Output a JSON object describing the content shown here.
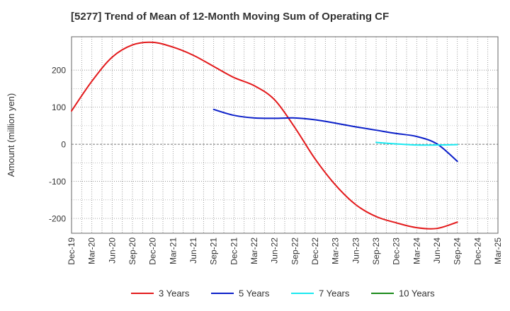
{
  "chart_data": {
    "type": "line",
    "title": "[5277]  Trend of Mean of 12-Month Moving Sum of Operating CF",
    "xlabel": "",
    "ylabel": "Amount (million yen)",
    "ylim": [
      -240,
      290
    ],
    "yticks": [
      -200,
      -100,
      0,
      100,
      200
    ],
    "categories": [
      "Dec-19",
      "Mar-20",
      "Jun-20",
      "Sep-20",
      "Dec-20",
      "Mar-21",
      "Jun-21",
      "Sep-21",
      "Dec-21",
      "Mar-22",
      "Jun-22",
      "Sep-22",
      "Dec-22",
      "Mar-23",
      "Jun-23",
      "Sep-23",
      "Dec-23",
      "Mar-24",
      "Jun-24",
      "Sep-24",
      "Dec-24",
      "Mar-25"
    ],
    "grid": true,
    "legend_position": "bottom",
    "series": [
      {
        "name": "3 Years",
        "color": "#e31a1c",
        "values": [
          90,
          170,
          235,
          268,
          275,
          262,
          240,
          210,
          180,
          158,
          120,
          45,
          -40,
          -110,
          -163,
          -195,
          -212,
          -225,
          -227,
          -210,
          null,
          null
        ]
      },
      {
        "name": "5 Years",
        "color": "#0b1fc9",
        "values": [
          null,
          null,
          null,
          null,
          null,
          null,
          null,
          94,
          78,
          71,
          70,
          71,
          66,
          57,
          47,
          38,
          29,
          21,
          1,
          -46,
          null,
          null
        ]
      },
      {
        "name": "7 Years",
        "color": "#1ae8f0",
        "values": [
          null,
          null,
          null,
          null,
          null,
          null,
          null,
          null,
          null,
          null,
          null,
          null,
          null,
          null,
          null,
          5,
          1,
          -2,
          -2,
          -1,
          null,
          null
        ]
      },
      {
        "name": "10 Years",
        "color": "#1a8a1a",
        "values": [
          null,
          null,
          null,
          null,
          null,
          null,
          null,
          null,
          null,
          null,
          null,
          null,
          null,
          null,
          null,
          null,
          null,
          null,
          null,
          null,
          null,
          null
        ]
      }
    ]
  }
}
